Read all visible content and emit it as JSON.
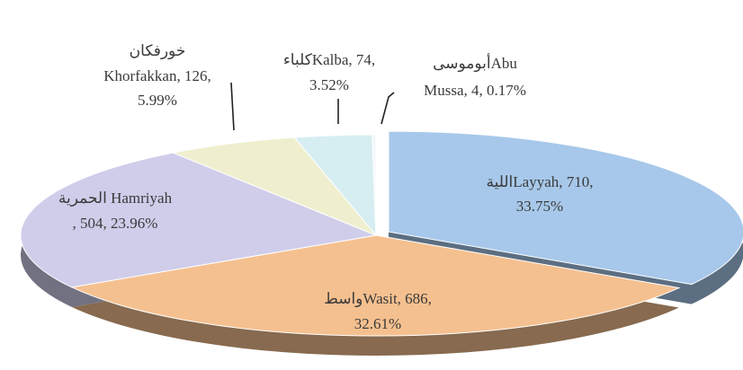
{
  "chart_data": {
    "type": "pie3d",
    "categories": [
      "Layyah",
      "Wasit",
      "Hamriyah",
      "Khorfakkan",
      "Kalba",
      "Abu Mussa"
    ],
    "labels": [
      [
        "الليةLayyah, 710,",
        "33.75%"
      ],
      [
        "واسطWasit, 686,",
        "32.61%"
      ],
      [
        "الحمرية Hamriyah",
        ", 504, 23.96%"
      ],
      [
        "خورفكان",
        "Khorfakkan, 126,",
        "5.99%"
      ],
      [
        "كلباءKalba, 74,",
        "3.52%"
      ],
      [
        "أبوموسىAbu",
        "Mussa, 4, 0.17%"
      ]
    ],
    "values": [
      710,
      686,
      504,
      126,
      74,
      4
    ],
    "percents": [
      33.75,
      32.61,
      23.96,
      5.99,
      3.52,
      0.17
    ],
    "colors": [
      "#a7c8ea",
      "#f5c08f",
      "#cfcdea",
      "#efefcf",
      "#d6eef1",
      "#f4f6f8"
    ]
  }
}
